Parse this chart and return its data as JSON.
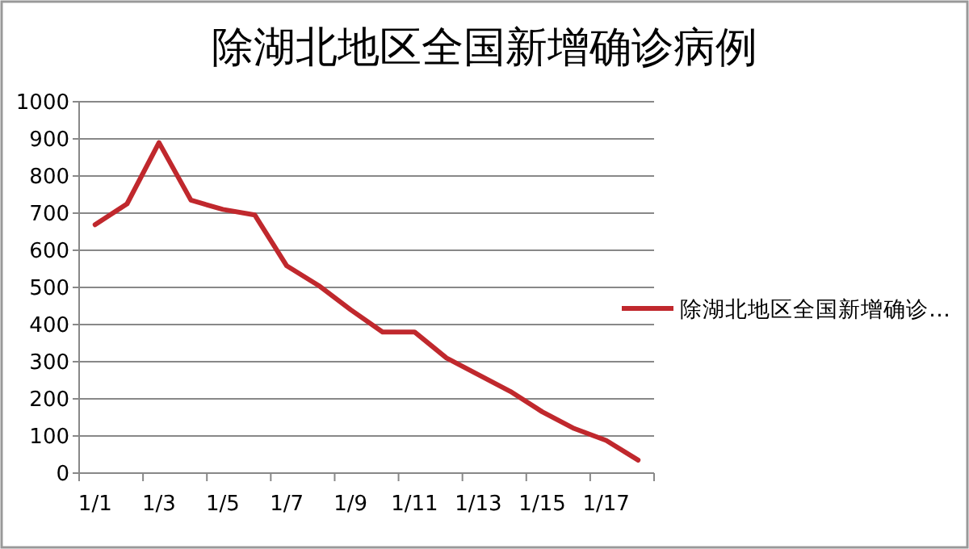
{
  "chart_data": {
    "type": "line",
    "title": "除湖北地区全国新增确诊病例",
    "categories": [
      "1/1",
      null,
      "1/3",
      null,
      "1/5",
      null,
      "1/7",
      null,
      "1/9",
      null,
      "1/11",
      null,
      "1/13",
      null,
      "1/15",
      null,
      "1/17",
      null
    ],
    "series": [
      {
        "name": "除湖北地区全国新增确诊…",
        "color": "#c0282d",
        "values": [
          669,
          725,
          890,
          735,
          710,
          695,
          558,
          505,
          440,
          380,
          380,
          310,
          265,
          220,
          165,
          120,
          88,
          35
        ]
      }
    ],
    "ylim": [
      0,
      1000
    ],
    "yticks": [
      0,
      100,
      200,
      300,
      400,
      500,
      600,
      700,
      800,
      900,
      1000
    ],
    "grid": "y",
    "legend": "right"
  }
}
